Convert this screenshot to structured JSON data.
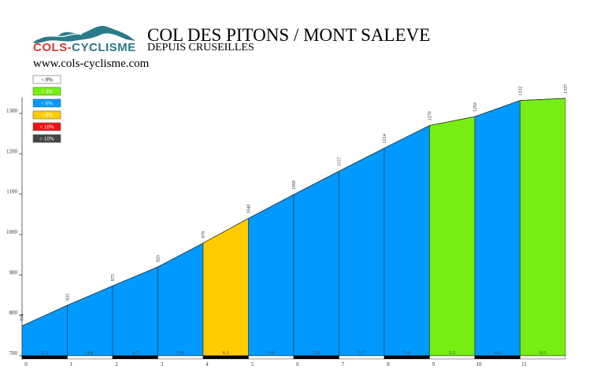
{
  "header": {
    "title": "COL DES PITONS / MONT SALEVE",
    "subtitle": "DEPUIS CRUSEILLES",
    "url": "www.cols-cyclisme.com"
  },
  "logo": {
    "text_part1": "COLS-",
    "text_part2": "CYCLISME",
    "color_red": "#d23b2f",
    "color_teal": "#2b7a8a"
  },
  "legend": [
    {
      "label": "< 0%",
      "color": "#ffffff",
      "text_color": "#000000"
    },
    {
      "label": "< 4%",
      "color": "#77ee11",
      "text_color": "#ffffff"
    },
    {
      "label": "< 6%",
      "color": "#0099ff",
      "text_color": "#ffffff"
    },
    {
      "label": "< 8%",
      "color": "#ffcc00",
      "text_color": "#ffffff"
    },
    {
      "label": "< 10%",
      "color": "#ee1111",
      "text_color": "#ffffff"
    },
    {
      "label": "> 10%",
      "color": "#444444",
      "text_color": "#ffffff"
    }
  ],
  "chart_data": {
    "type": "area",
    "x_ticks": [
      "0",
      "1",
      "2",
      "3",
      "4",
      "5",
      "6",
      "7",
      "8",
      "9",
      "10",
      "11"
    ],
    "y_ticks": [
      "700",
      "800",
      "900",
      "1000",
      "1100",
      "1200",
      "1300"
    ],
    "xlim": [
      0,
      12.1
    ],
    "ylim": [
      700,
      1340
    ],
    "distance_km": [
      0,
      1,
      2,
      3,
      4,
      5,
      6,
      7,
      8,
      9,
      10,
      11,
      12.0
    ],
    "altitude_labels": [
      "774",
      "825",
      "873",
      "920",
      "979",
      "1040",
      "1099",
      "1157",
      "1214",
      "1270",
      "1292",
      "1332",
      "1337"
    ],
    "altitudes": [
      774,
      825,
      873,
      920,
      979,
      1040,
      1099,
      1157,
      1214,
      1270,
      1292,
      1332,
      1337
    ],
    "segments": [
      {
        "grade": "5.1",
        "color": "#0099ff"
      },
      {
        "grade": "4.8",
        "color": "#0099ff"
      },
      {
        "grade": "4.7",
        "color": "#0099ff"
      },
      {
        "grade": "5.9",
        "color": "#0099ff"
      },
      {
        "grade": "6.1",
        "color": "#ffcc00"
      },
      {
        "grade": "5.9",
        "color": "#0099ff"
      },
      {
        "grade": "5.8",
        "color": "#0099ff"
      },
      {
        "grade": "5.7",
        "color": "#0099ff"
      },
      {
        "grade": "5.6",
        "color": "#0099ff"
      },
      {
        "grade": "2.2",
        "color": "#77ee11"
      },
      {
        "grade": "4.0",
        "color": "#0099ff"
      },
      {
        "grade": "0.5",
        "color": "#77ee11"
      }
    ]
  }
}
